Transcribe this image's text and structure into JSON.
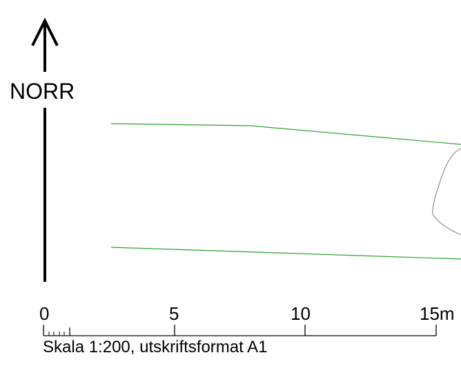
{
  "north": {
    "label": "NORR"
  },
  "scale_bar": {
    "ticks": [
      {
        "label": "0",
        "value": 0
      },
      {
        "label": "5",
        "value": 5
      },
      {
        "label": "10",
        "value": 10
      },
      {
        "label": "15m",
        "value": 15
      }
    ],
    "caption": "Skala 1:200, utskriftsformat A1"
  },
  "colors": {
    "boundary_line": "#2ca02c",
    "outline_shape": "#8c8c8c",
    "ink": "#000000"
  }
}
